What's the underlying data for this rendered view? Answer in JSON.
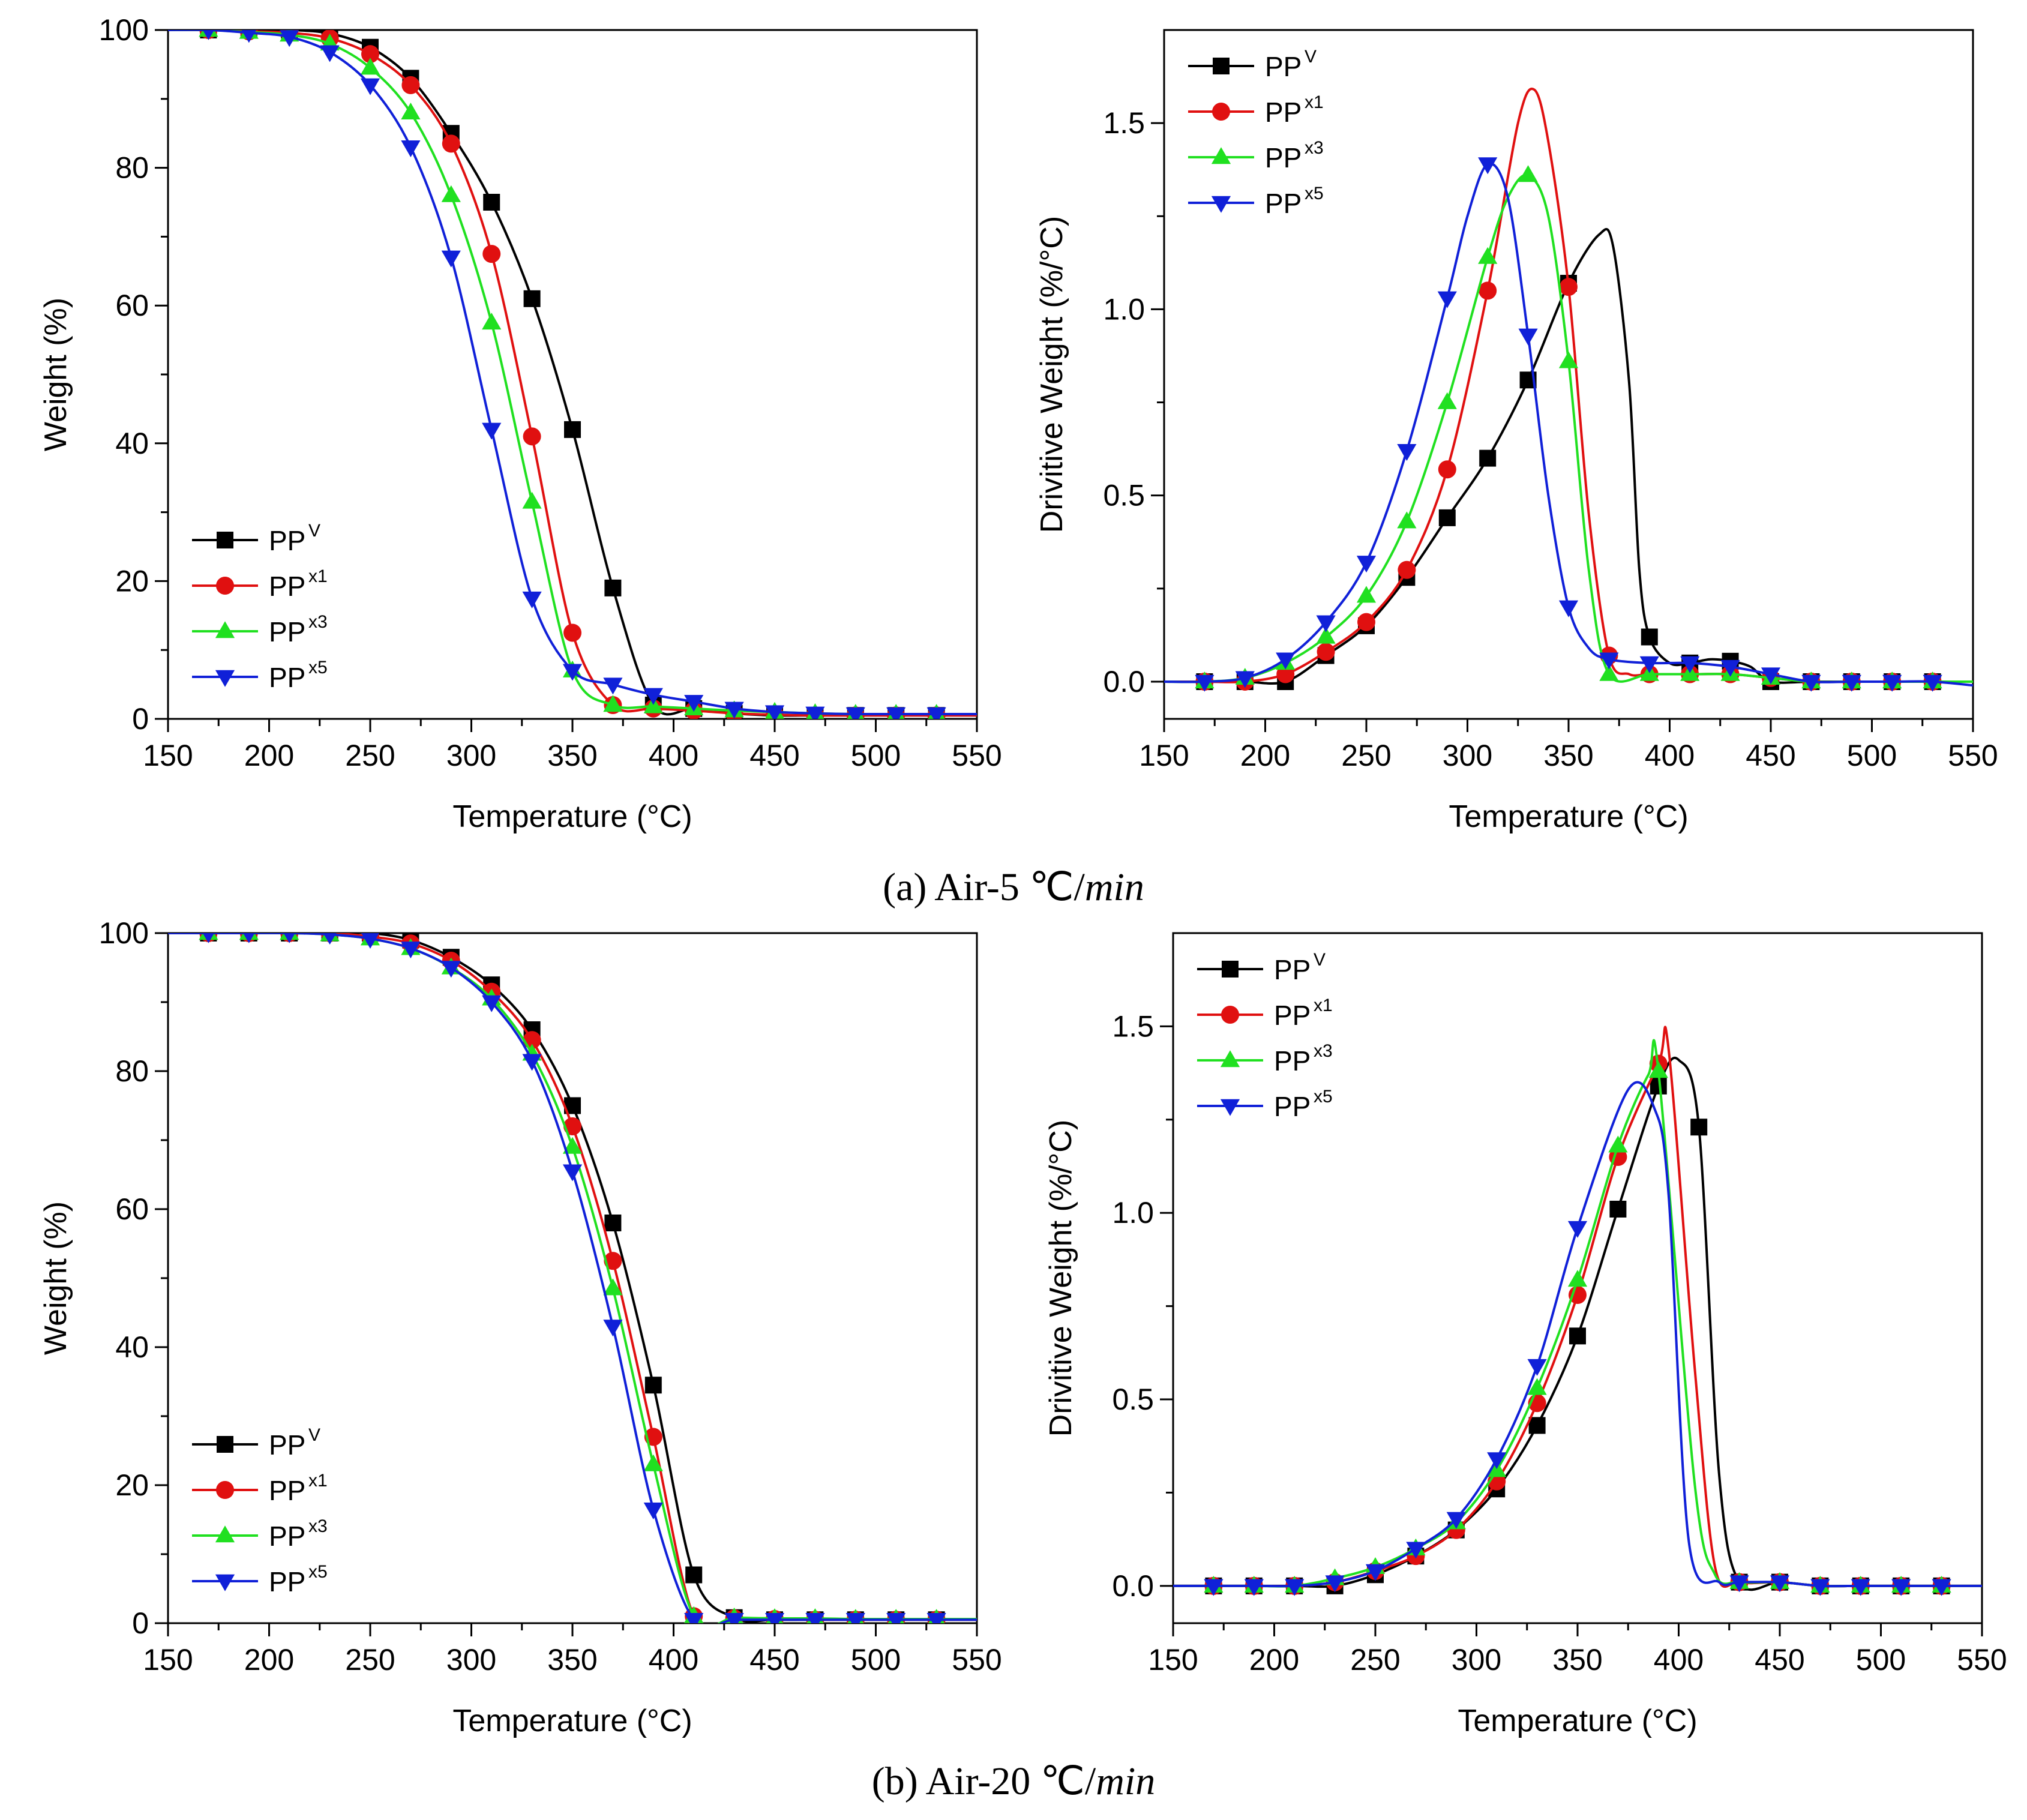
{
  "colors": {
    "PPV": "#000000",
    "PPx1": "#e01010",
    "PPx3": "#20e020",
    "PPx5": "#1020d8"
  },
  "captions": {
    "a": {
      "prefix": "(a) Air-5 ",
      "unit": "℃/",
      "italic": "min"
    },
    "b": {
      "prefix": "(b) Air-20 ",
      "unit": "℃/",
      "italic": "min"
    }
  },
  "chart_data": [
    {
      "id": "a-weight",
      "type": "line",
      "xlabel": "Temperature (°C)",
      "ylabel": "Weight (%)",
      "xlim": [
        150,
        550
      ],
      "ylim": [
        0,
        100
      ],
      "xticks": [
        150,
        200,
        250,
        300,
        350,
        400,
        450,
        500,
        550
      ],
      "yticks": [
        0,
        20,
        40,
        60,
        80,
        100
      ],
      "legend_position": "bottom-left",
      "series": [
        {
          "name": "PP",
          "sup": "V",
          "key": "PPV",
          "marker": "square",
          "x": [
            150,
            170,
            190,
            210,
            230,
            250,
            270,
            290,
            310,
            330,
            350,
            370,
            390,
            410,
            430,
            450,
            470,
            490,
            510,
            530,
            550
          ],
          "y": [
            100,
            100,
            100,
            100,
            99.5,
            97.5,
            93,
            85,
            75,
            61,
            42,
            19,
            2,
            1.5,
            0.8,
            0.5,
            0.5,
            0.5,
            0.5,
            0.5,
            0.5
          ]
        },
        {
          "name": "PP",
          "sup": "x1",
          "key": "PPx1",
          "marker": "circle",
          "x": [
            150,
            170,
            190,
            210,
            230,
            250,
            270,
            290,
            310,
            330,
            350,
            370,
            390,
            410,
            430,
            450,
            470,
            490,
            510,
            530,
            550
          ],
          "y": [
            100,
            100,
            99.8,
            99.6,
            98.8,
            96.5,
            92,
            83.5,
            67.5,
            41,
            12.5,
            2,
            1.5,
            1.2,
            0.8,
            0.6,
            0.5,
            0.5,
            0.5,
            0.5,
            0.5
          ]
        },
        {
          "name": "PP",
          "sup": "x3",
          "key": "PPx3",
          "marker": "triangle-up",
          "x": [
            150,
            170,
            190,
            210,
            230,
            250,
            270,
            290,
            310,
            330,
            350,
            370,
            390,
            410,
            430,
            450,
            470,
            490,
            510,
            530,
            550
          ],
          "y": [
            100,
            100,
            99.7,
            99.3,
            98,
            94.5,
            88,
            76,
            57.5,
            31.5,
            7,
            2,
            1.8,
            1.5,
            1.2,
            1,
            0.8,
            0.7,
            0.7,
            0.7,
            0.7
          ]
        },
        {
          "name": "PP",
          "sup": "x5",
          "key": "PPx5",
          "marker": "triangle-down",
          "x": [
            150,
            170,
            190,
            210,
            230,
            250,
            270,
            290,
            310,
            330,
            350,
            370,
            390,
            410,
            430,
            450,
            470,
            490,
            510,
            530,
            550
          ],
          "y": [
            100,
            100,
            99.6,
            99,
            96.8,
            92,
            83,
            67,
            42,
            17.5,
            7,
            5,
            3.5,
            2.5,
            1.5,
            1,
            0.8,
            0.7,
            0.7,
            0.7,
            0.7
          ]
        }
      ]
    },
    {
      "id": "a-derivative",
      "type": "line",
      "xlabel": "Temperature (°C)",
      "ylabel": "Drivitive Weight (%/°C)",
      "xlim": [
        150,
        550
      ],
      "ylim": [
        -0.1,
        1.75
      ],
      "xticks": [
        150,
        200,
        250,
        300,
        350,
        400,
        450,
        500,
        550
      ],
      "yticks": [
        0.0,
        0.5,
        1.0,
        1.5
      ],
      "legend_position": "top-left",
      "series": [
        {
          "name": "PP",
          "sup": "V",
          "key": "PPV",
          "marker": "square",
          "x": [
            150,
            170,
            190,
            210,
            230,
            250,
            270,
            290,
            310,
            330,
            350,
            365,
            372,
            380,
            385,
            390,
            400,
            410,
            420,
            430,
            440,
            450,
            470,
            490,
            510,
            530,
            550
          ],
          "y": [
            0,
            0,
            0,
            0,
            0.07,
            0.15,
            0.28,
            0.44,
            0.6,
            0.81,
            1.07,
            1.2,
            1.17,
            0.8,
            0.3,
            0.12,
            0.05,
            0.05,
            0.06,
            0.055,
            0.04,
            0,
            0,
            0,
            0,
            0,
            0
          ]
        },
        {
          "name": "PP",
          "sup": "x1",
          "key": "PPx1",
          "marker": "circle",
          "x": [
            150,
            170,
            190,
            210,
            230,
            250,
            270,
            290,
            310,
            325,
            333,
            340,
            350,
            360,
            370,
            380,
            390,
            410,
            430,
            450,
            470,
            490,
            510,
            530,
            550
          ],
          "y": [
            0,
            0,
            0,
            0.02,
            0.08,
            0.16,
            0.3,
            0.57,
            1.05,
            1.5,
            1.59,
            1.45,
            1.06,
            0.45,
            0.07,
            0.02,
            0.02,
            0.02,
            0.02,
            0.01,
            0,
            0,
            0,
            0,
            0
          ]
        },
        {
          "name": "PP",
          "sup": "x3",
          "key": "PPx3",
          "marker": "triangle-up",
          "x": [
            150,
            170,
            190,
            210,
            230,
            250,
            270,
            290,
            310,
            320,
            330,
            340,
            350,
            360,
            370,
            390,
            410,
            430,
            450,
            470,
            490,
            510,
            530,
            550
          ],
          "y": [
            0,
            0,
            0.01,
            0.05,
            0.12,
            0.23,
            0.43,
            0.75,
            1.14,
            1.3,
            1.36,
            1.25,
            0.86,
            0.3,
            0.02,
            0.02,
            0.02,
            0.02,
            0.01,
            0,
            0,
            0,
            0,
            0
          ]
        },
        {
          "name": "PP",
          "sup": "x5",
          "key": "PPx5",
          "marker": "triangle-down",
          "x": [
            150,
            170,
            190,
            210,
            230,
            250,
            270,
            290,
            300,
            310,
            320,
            330,
            340,
            350,
            360,
            370,
            390,
            410,
            430,
            450,
            470,
            490,
            510,
            530,
            550
          ],
          "y": [
            0,
            0,
            0.01,
            0.06,
            0.16,
            0.32,
            0.62,
            1.03,
            1.25,
            1.39,
            1.3,
            0.93,
            0.5,
            0.2,
            0.09,
            0.06,
            0.05,
            0.05,
            0.04,
            0.02,
            0,
            0,
            0,
            0,
            -0.01
          ]
        }
      ]
    },
    {
      "id": "b-weight",
      "type": "line",
      "xlabel": "Temperature (°C)",
      "ylabel": "Weight (%)",
      "xlim": [
        150,
        550
      ],
      "ylim": [
        0,
        100
      ],
      "xticks": [
        150,
        200,
        250,
        300,
        350,
        400,
        450,
        500,
        550
      ],
      "yticks": [
        0,
        20,
        40,
        60,
        80,
        100
      ],
      "legend_position": "bottom-left",
      "series": [
        {
          "name": "PP",
          "sup": "V",
          "key": "PPV",
          "marker": "square",
          "x": [
            150,
            170,
            190,
            210,
            230,
            250,
            270,
            290,
            310,
            330,
            350,
            370,
            390,
            410,
            430,
            450,
            470,
            490,
            510,
            530,
            550
          ],
          "y": [
            100,
            100,
            100,
            100,
            100,
            100,
            99,
            96.5,
            92.5,
            86,
            75,
            58,
            34.5,
            7,
            0.8,
            0.5,
            0.5,
            0.5,
            0.5,
            0.5,
            0.5
          ]
        },
        {
          "name": "PP",
          "sup": "x1",
          "key": "PPx1",
          "marker": "circle",
          "x": [
            150,
            170,
            190,
            210,
            230,
            250,
            270,
            290,
            310,
            330,
            350,
            370,
            390,
            410,
            430,
            450,
            470,
            490,
            510,
            530,
            550
          ],
          "y": [
            100,
            100,
            100,
            100,
            100,
            99.5,
            98.5,
            96,
            91.5,
            84.5,
            72,
            52.5,
            27,
            1,
            0.7,
            0.6,
            0.5,
            0.5,
            0.5,
            0.5,
            0.5
          ]
        },
        {
          "name": "PP",
          "sup": "x3",
          "key": "PPx3",
          "marker": "triangle-up",
          "x": [
            150,
            170,
            190,
            210,
            230,
            250,
            270,
            290,
            310,
            330,
            350,
            370,
            390,
            410,
            430,
            450,
            470,
            490,
            510,
            530,
            550
          ],
          "y": [
            100,
            100,
            100,
            100,
            99.8,
            99.2,
            97.8,
            95,
            90.5,
            82.5,
            69,
            48.5,
            23,
            1,
            0.8,
            0.7,
            0.7,
            0.6,
            0.6,
            0.6,
            0.6
          ]
        },
        {
          "name": "PP",
          "sup": "x5",
          "key": "PPx5",
          "marker": "triangle-down",
          "x": [
            150,
            170,
            190,
            210,
            230,
            250,
            270,
            290,
            310,
            330,
            350,
            370,
            390,
            410,
            430,
            450,
            470,
            490,
            510,
            530,
            550
          ],
          "y": [
            100,
            100,
            100,
            100,
            99.8,
            99.2,
            97.8,
            95,
            90,
            81.5,
            65.5,
            43,
            16.5,
            0.5,
            0.5,
            0.5,
            0.5,
            0.5,
            0.5,
            0.5,
            0.5
          ]
        }
      ]
    },
    {
      "id": "b-derivative",
      "type": "line",
      "xlabel": "Temperature (°C)",
      "ylabel": "Drivitive Weight (%/°C)",
      "xlim": [
        150,
        550
      ],
      "ylim": [
        -0.1,
        1.75
      ],
      "xticks": [
        150,
        200,
        250,
        300,
        350,
        400,
        450,
        500,
        550
      ],
      "yticks": [
        0.0,
        0.5,
        1.0,
        1.5
      ],
      "legend_position": "top-left",
      "series": [
        {
          "name": "PP",
          "sup": "V",
          "key": "PPV",
          "marker": "square",
          "x": [
            150,
            170,
            190,
            210,
            230,
            250,
            270,
            290,
            310,
            330,
            350,
            370,
            390,
            400,
            410,
            420,
            430,
            450,
            470,
            490,
            510,
            530,
            550
          ],
          "y": [
            0,
            0,
            0,
            0,
            0,
            0.03,
            0.08,
            0.15,
            0.26,
            0.43,
            0.67,
            1.01,
            1.34,
            1.41,
            1.23,
            0.3,
            0.01,
            0.01,
            0,
            0,
            0,
            0,
            0
          ]
        },
        {
          "name": "PP",
          "sup": "x1",
          "key": "PPx1",
          "marker": "circle",
          "x": [
            150,
            170,
            190,
            210,
            230,
            250,
            270,
            290,
            310,
            330,
            350,
            370,
            390,
            395,
            408,
            418,
            430,
            450,
            470,
            490,
            510,
            530,
            550
          ],
          "y": [
            0,
            0,
            0,
            0,
            0.01,
            0.04,
            0.08,
            0.15,
            0.28,
            0.49,
            0.78,
            1.15,
            1.4,
            1.44,
            0.58,
            0.05,
            0.01,
            0.01,
            0,
            0,
            0,
            0,
            0
          ]
        },
        {
          "name": "PP",
          "sup": "x3",
          "key": "PPx3",
          "marker": "triangle-up",
          "x": [
            150,
            170,
            190,
            210,
            230,
            250,
            270,
            290,
            310,
            330,
            350,
            370,
            385,
            390,
            408,
            418,
            430,
            450,
            470,
            490,
            510,
            530,
            550
          ],
          "y": [
            0,
            0,
            0,
            0,
            0.02,
            0.05,
            0.1,
            0.17,
            0.31,
            0.53,
            0.82,
            1.18,
            1.37,
            1.38,
            0.27,
            0.03,
            0.01,
            0.01,
            0,
            0,
            0,
            0,
            0
          ]
        },
        {
          "name": "PP",
          "sup": "x5",
          "key": "PPx5",
          "marker": "triangle-down",
          "x": [
            150,
            170,
            190,
            210,
            230,
            250,
            270,
            290,
            310,
            330,
            350,
            375,
            388,
            395,
            405,
            420,
            430,
            450,
            470,
            490,
            510,
            530,
            550
          ],
          "y": [
            0,
            0,
            0,
            0,
            0.01,
            0.04,
            0.1,
            0.18,
            0.34,
            0.59,
            0.96,
            1.33,
            1.28,
            1.05,
            0.12,
            0.01,
            0.01,
            0.01,
            0,
            0,
            0,
            0,
            0
          ]
        }
      ]
    }
  ]
}
